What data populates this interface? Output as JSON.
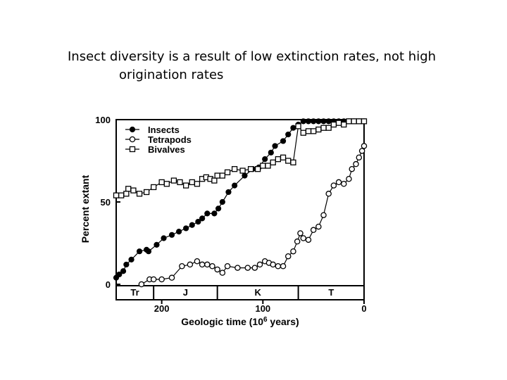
{
  "slide": {
    "title_line1": "Insect diversity is a result of low extinction rates, not high",
    "title_line2": "origination rates"
  },
  "chart_data": {
    "type": "line",
    "xlabel": "Geologic time (10",
    "xlabel_sup": "6",
    "xlabel_tail": " years)",
    "ylabel": "Percent extant",
    "xlim": [
      245,
      0
    ],
    "ylim": [
      0,
      100
    ],
    "x_ticks": [
      200,
      100,
      0
    ],
    "y_ticks": [
      0,
      50,
      100
    ],
    "legend_position": "top-left",
    "periods": [
      {
        "label": "Tr",
        "start": 245,
        "end": 208
      },
      {
        "label": "J",
        "start": 208,
        "end": 145
      },
      {
        "label": "K",
        "start": 145,
        "end": 65
      },
      {
        "label": "T",
        "start": 65,
        "end": 0
      }
    ],
    "series": [
      {
        "name": "Insects",
        "marker": "filled-circle",
        "x": [
          245,
          242,
          238,
          235,
          230,
          222,
          215,
          213,
          205,
          198,
          190,
          183,
          176,
          170,
          164,
          160,
          155,
          148,
          144,
          140,
          134,
          128,
          118,
          110,
          104,
          98,
          92,
          88,
          80,
          75,
          70,
          65,
          60,
          55,
          50,
          45,
          40,
          35,
          30,
          25,
          20,
          15,
          10,
          5,
          0
        ],
        "y": [
          4,
          6,
          8,
          12,
          15,
          20,
          21,
          20,
          24,
          28,
          30,
          32,
          34,
          36,
          38,
          40,
          43,
          43,
          46,
          50,
          56,
          60,
          66,
          70,
          71,
          76,
          80,
          84,
          87,
          91,
          95,
          97,
          99,
          99,
          99,
          99,
          99,
          99,
          99,
          99,
          99,
          99,
          99,
          99,
          99
        ]
      },
      {
        "name": "Tetrapods",
        "marker": "open-circle",
        "x": [
          220,
          212,
          208,
          200,
          190,
          180,
          172,
          165,
          160,
          155,
          150,
          145,
          140,
          135,
          125,
          115,
          108,
          103,
          98,
          94,
          90,
          85,
          80,
          75,
          70,
          66,
          63,
          60,
          55,
          50,
          45,
          40,
          35,
          30,
          25,
          20,
          15,
          12,
          8,
          5,
          2,
          0
        ],
        "y": [
          0,
          3,
          3,
          3,
          4,
          11,
          12,
          14,
          12,
          12,
          11,
          9,
          7,
          11,
          10,
          10,
          10,
          12,
          14,
          13,
          12,
          11,
          11,
          17,
          20,
          26,
          31,
          28,
          27,
          33,
          35,
          42,
          55,
          60,
          62,
          61,
          64,
          70,
          73,
          77,
          81,
          84
        ]
      },
      {
        "name": "Bivalves",
        "marker": "open-square",
        "x": [
          245,
          240,
          235,
          233,
          228,
          222,
          215,
          208,
          200,
          195,
          188,
          182,
          176,
          170,
          165,
          160,
          156,
          152,
          148,
          145,
          140,
          135,
          128,
          120,
          112,
          105,
          100,
          95,
          90,
          85,
          80,
          75,
          70,
          65,
          60,
          55,
          50,
          45,
          40,
          35,
          30,
          25,
          20,
          15,
          10,
          5,
          0
        ],
        "y": [
          54,
          54,
          55,
          58,
          57,
          55,
          56,
          59,
          62,
          61,
          63,
          62,
          60,
          62,
          61,
          64,
          65,
          64,
          63,
          66,
          66,
          68,
          70,
          69,
          70,
          70,
          72,
          72,
          74,
          76,
          77,
          75,
          74,
          96,
          92,
          93,
          93,
          94,
          95,
          95,
          97,
          98,
          97,
          99,
          99,
          99,
          99
        ]
      }
    ]
  }
}
